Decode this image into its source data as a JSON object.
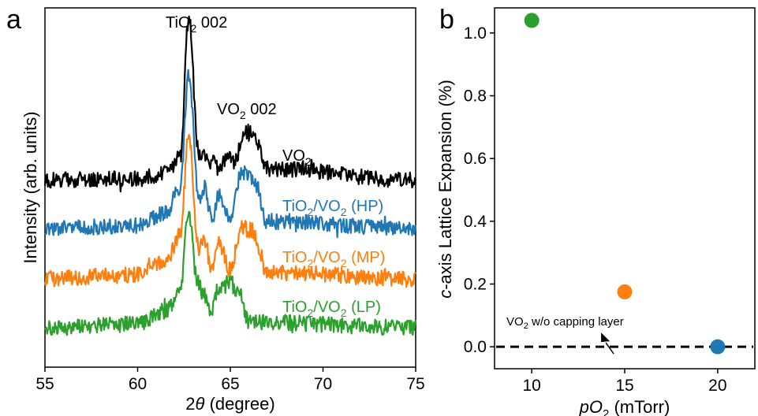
{
  "figure": {
    "panel_a_label": "a",
    "panel_b_label": "b"
  },
  "colors": {
    "black": "#000000",
    "blue": "#1f77b4",
    "orange": "#ff7f0e",
    "green": "#2ca02c"
  },
  "chart_data": [
    {
      "type": "line",
      "panel": "a",
      "xlabel_prefix": "2",
      "xlabel_symbol": "θ",
      "xlabel_suffix": " (degree)",
      "ylabel": "Intensity (arb. units)",
      "xlim": [
        55,
        75
      ],
      "xticks": [
        "55",
        "60",
        "65",
        "70",
        "75"
      ],
      "grid": false,
      "peak_labels": [
        {
          "base": "TiO",
          "sub": "2",
          "rest": " 002"
        },
        {
          "base": "VO",
          "sub": "2",
          "rest": " 002"
        }
      ],
      "peaks_2theta": {
        "substrate": 62.75,
        "film": 65.8
      },
      "series": [
        {
          "label_parts": [
            {
              "t": "VO",
              "sub": false
            },
            {
              "t": "2",
              "sub": true
            }
          ],
          "color": "#000000",
          "x": [
            55,
            60,
            61.5,
            62.3,
            62.75,
            63.3,
            64.0,
            64.4,
            64.9,
            65.2,
            65.8,
            66.4,
            67.0,
            75
          ],
          "y": [
            0.02,
            0.05,
            0.15,
            0.45,
            3.2,
            0.55,
            0.4,
            0.22,
            0.55,
            0.35,
            1.0,
            0.8,
            0.25,
            0.02
          ]
        },
        {
          "label_parts": [
            {
              "t": "TiO",
              "sub": false
            },
            {
              "t": "2",
              "sub": true
            },
            {
              "t": "/VO",
              "sub": false
            },
            {
              "t": "2",
              "sub": true
            },
            {
              "t": " (HP)",
              "sub": false
            }
          ],
          "color": "#1f77b4",
          "x": [
            55,
            60,
            61.5,
            62.3,
            62.75,
            63.3,
            63.6,
            64.0,
            64.4,
            65.0,
            65.6,
            66.2,
            67.0,
            75
          ],
          "y": [
            0.02,
            0.08,
            0.3,
            0.75,
            2.75,
            0.55,
            0.75,
            0.2,
            0.6,
            0.25,
            1.05,
            0.95,
            0.15,
            0.02
          ]
        },
        {
          "label_parts": [
            {
              "t": "TiO",
              "sub": false
            },
            {
              "t": "2",
              "sub": true
            },
            {
              "t": "/VO",
              "sub": false
            },
            {
              "t": "2",
              "sub": true
            },
            {
              "t": " (MP)",
              "sub": false
            }
          ],
          "color": "#ff7f0e",
          "x": [
            55,
            60,
            61.5,
            62.3,
            62.75,
            63.3,
            63.6,
            64.0,
            64.4,
            65.0,
            65.6,
            66.2,
            67.0,
            75
          ],
          "y": [
            0.02,
            0.1,
            0.35,
            0.9,
            2.95,
            0.6,
            0.8,
            0.2,
            0.75,
            0.2,
            1.05,
            1.0,
            0.15,
            0.02
          ]
        },
        {
          "label_parts": [
            {
              "t": "TiO",
              "sub": false
            },
            {
              "t": "2",
              "sub": true
            },
            {
              "t": "/VO",
              "sub": false
            },
            {
              "t": "2",
              "sub": true
            },
            {
              "t": " (LP)",
              "sub": false
            }
          ],
          "color": "#2ca02c",
          "x": [
            55,
            60,
            61.5,
            62.3,
            62.75,
            63.2,
            63.6,
            64.0,
            64.3,
            65.0,
            65.5,
            66.0,
            75
          ],
          "y": [
            0.02,
            0.1,
            0.4,
            0.85,
            2.7,
            1.1,
            0.75,
            0.3,
            0.85,
            1.05,
            0.75,
            0.15,
            0.02
          ]
        }
      ]
    },
    {
      "type": "scatter",
      "panel": "b",
      "xlabel_parts": [
        {
          "t": "pO",
          "italic": true,
          "sub": false
        },
        {
          "t": "2",
          "italic": false,
          "sub": true
        },
        {
          "t": " (mTorr)",
          "italic": false,
          "sub": false
        }
      ],
      "ylabel_parts": [
        {
          "t": "c",
          "italic": true
        },
        {
          "t": "-axis Lattice Expansion (%)",
          "italic": false
        }
      ],
      "xlim": [
        8,
        22
      ],
      "ylim": [
        -0.07,
        1.08
      ],
      "xticks": [
        "10",
        "15",
        "20"
      ],
      "yticks": [
        "0.0",
        "0.2",
        "0.4",
        "0.6",
        "0.8",
        "1.0"
      ],
      "grid": false,
      "points": [
        {
          "x": 10,
          "y": 1.04,
          "color": "#2ca02c"
        },
        {
          "x": 15,
          "y": 0.175,
          "color": "#ff7f0e"
        },
        {
          "x": 20,
          "y": 0.0,
          "color": "#1f77b4"
        }
      ],
      "reference_line": {
        "y": 0.0,
        "style": "dashed",
        "color": "#000000"
      },
      "annotation": {
        "base": "VO",
        "sub": "2",
        "rest": " w/o capping layer",
        "points_to": {
          "x": 13.9,
          "y": 0.05
        }
      }
    }
  ]
}
